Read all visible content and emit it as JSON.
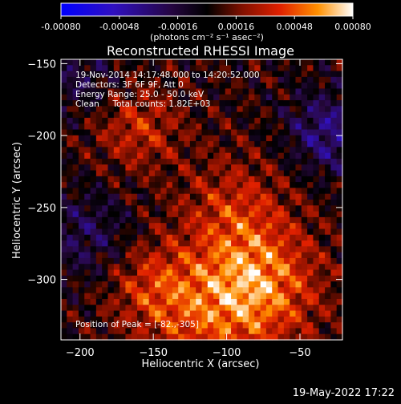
{
  "colorbar": {
    "ticks": [
      "-0.00080",
      "-0.00048",
      "-0.00016",
      "0.00016",
      "0.00048",
      "0.00080"
    ],
    "units": "(photons cm⁻² s⁻¹ asec⁻²)"
  },
  "chart_data": {
    "type": "heatmap",
    "title": "Reconstructed RHESSI Image",
    "xlabel": "Heliocentric X (arcsec)",
    "ylabel": "Heliocentric Y (arcsec)",
    "xlim": [
      -213,
      -21
    ],
    "ylim": [
      -342,
      -147
    ],
    "xticks": [
      -200,
      -150,
      -100,
      -50
    ],
    "yticks": [
      -150,
      -200,
      -250,
      -300
    ],
    "xtick_labels": [
      "−200",
      "−150",
      "−100",
      "−50"
    ],
    "ytick_labels": [
      "−150",
      "−200",
      "−250",
      "−300"
    ],
    "colorbar_range": [
      -0.0008,
      0.0008
    ],
    "peak_position": [
      -82,
      -305
    ],
    "info_lines": [
      "19-Nov-2014 14:17:48.000 to 14:20:52.000",
      "Detectors: 3F 6F 9F, Att 0",
      "Energy Range: 25.0 - 50.0 keV",
      "Clean     Total counts: 1.82E+03"
    ],
    "peak_label": "Position of Peak = [-82.,-305]",
    "colors": {
      "negative": "#0000c0",
      "mid": "#000000",
      "positive_low": "#cc2200",
      "positive_high": "#ffffff"
    }
  },
  "footer": {
    "date": "19-May-2022 17:22"
  }
}
